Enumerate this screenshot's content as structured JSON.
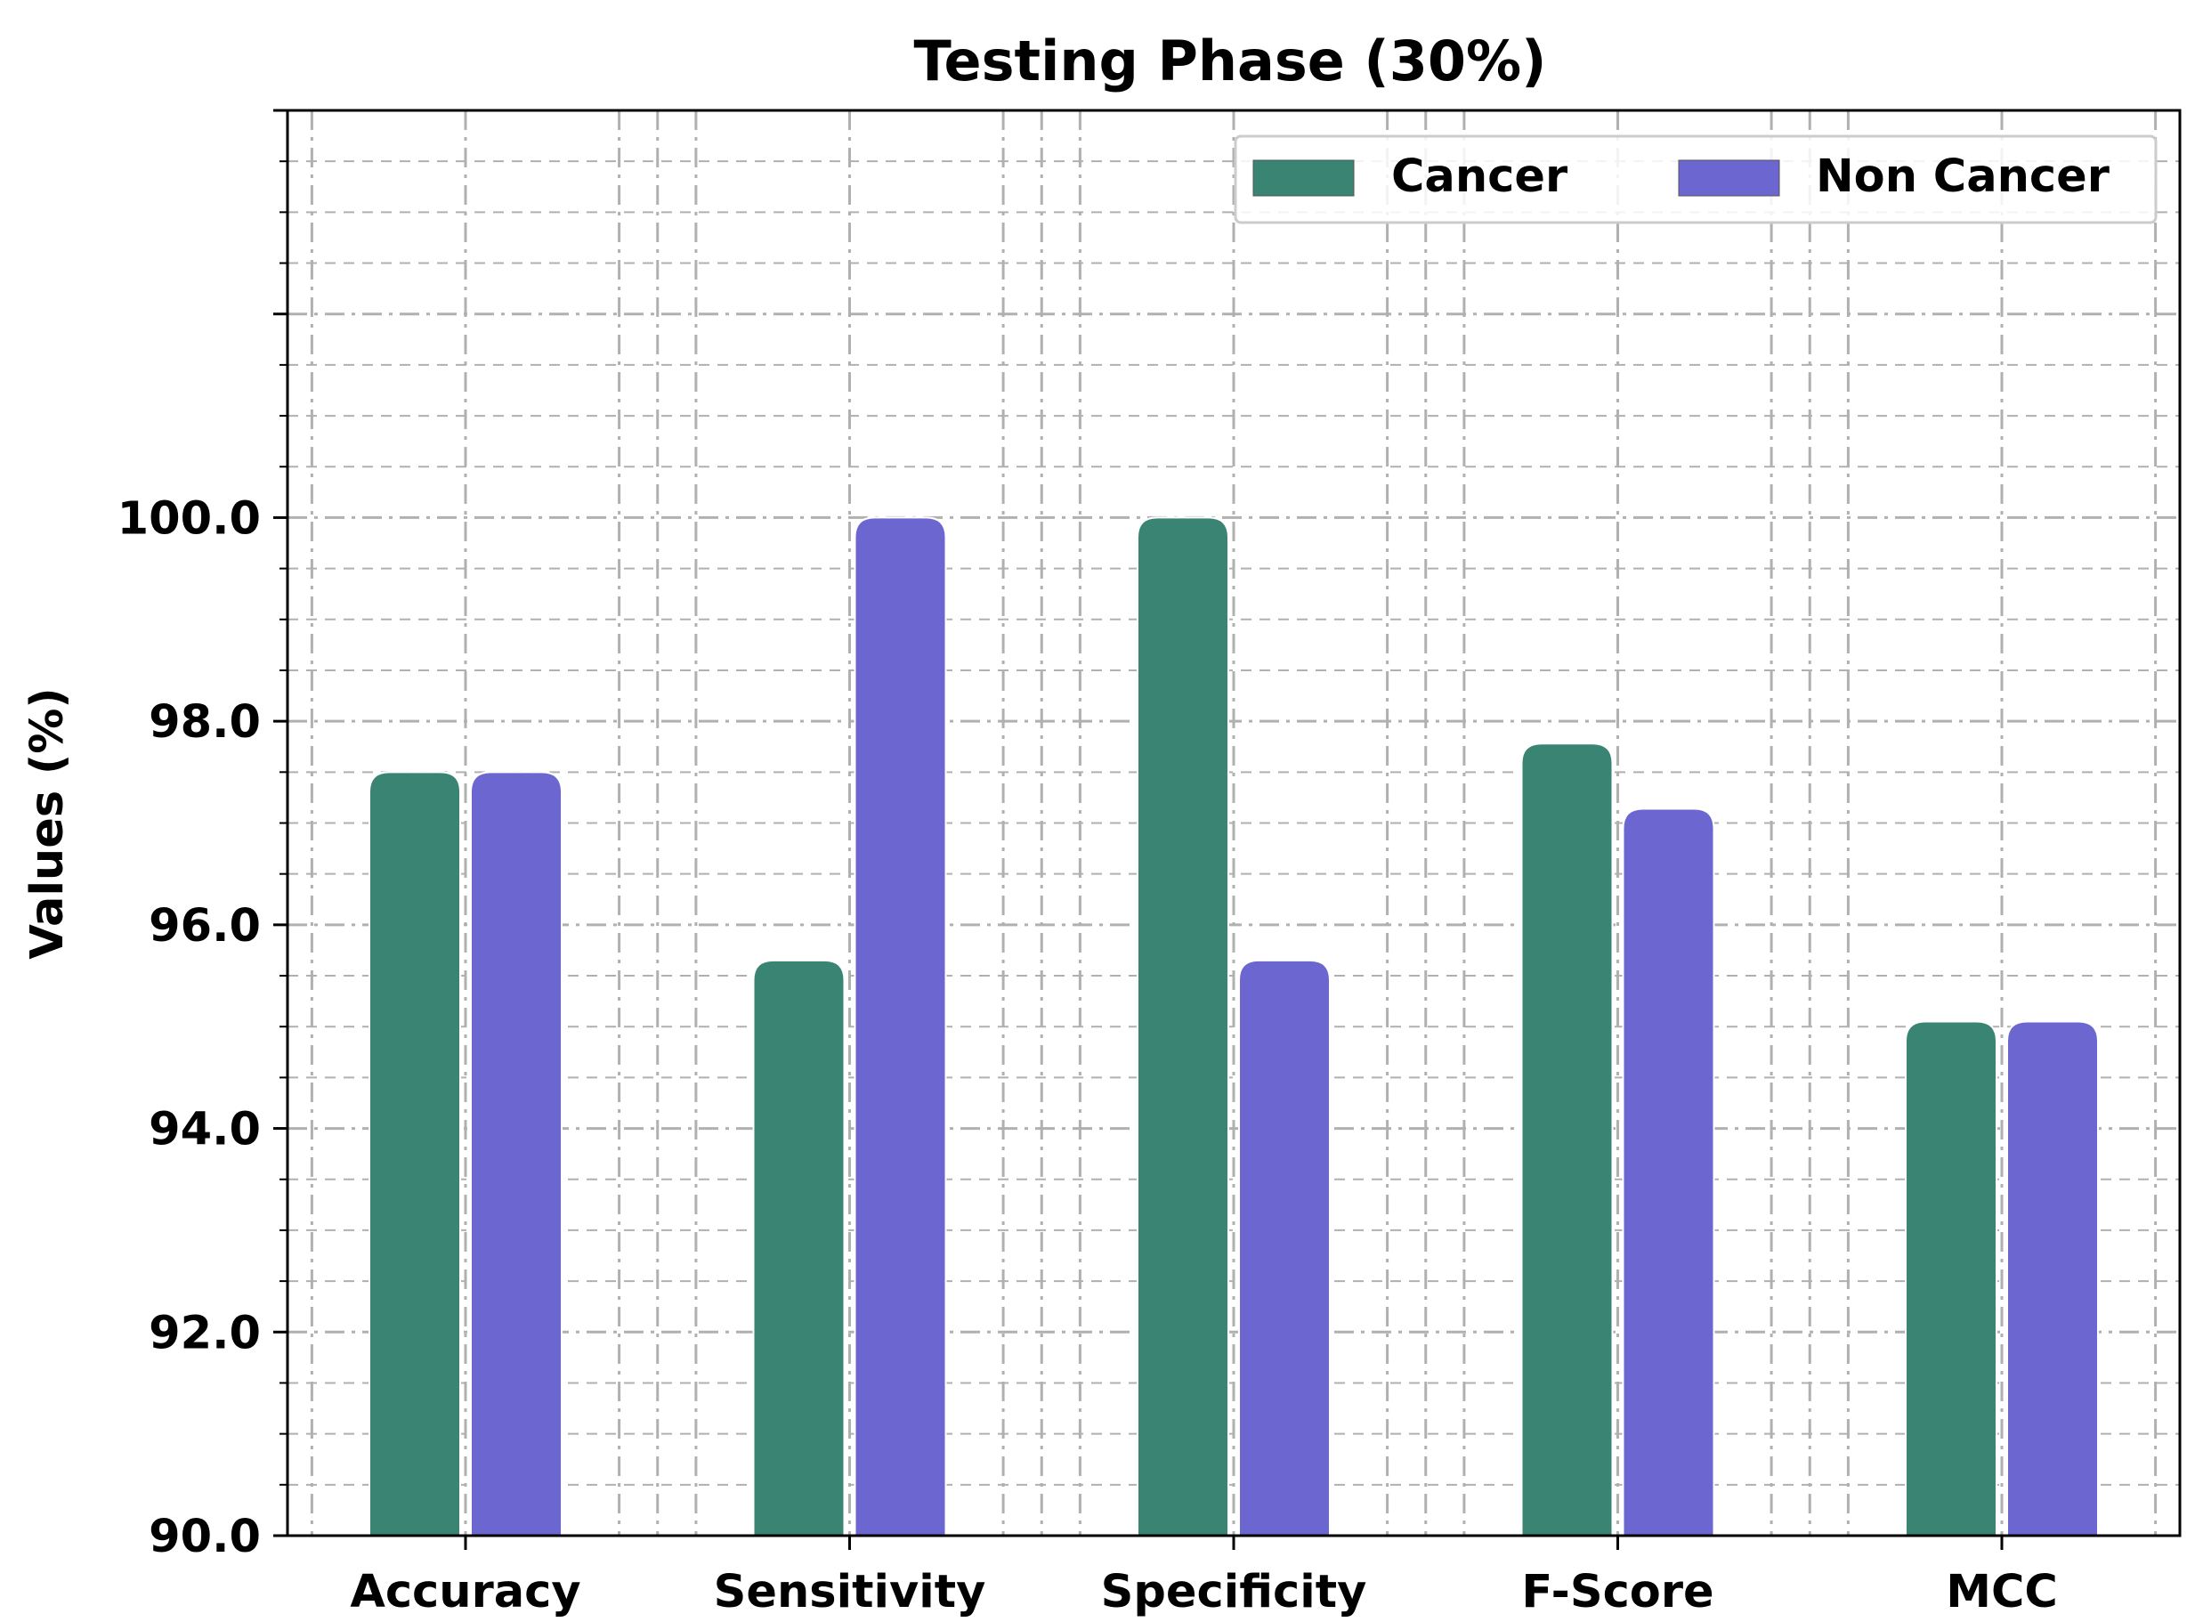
{
  "chart_data": {
    "type": "bar",
    "title": "Testing Phase (30%)",
    "xlabel": "",
    "ylabel": "Values (%)",
    "categories": [
      "Accuracy",
      "Sensitivity",
      "Specificity",
      "F-Score",
      "MCC"
    ],
    "series": [
      {
        "name": "Cancer",
        "color": "#3a8474",
        "values": [
          97.5,
          95.65,
          100.0,
          97.78,
          95.05
        ]
      },
      {
        "name": "Non Cancer",
        "color": "#6c66d0",
        "values": [
          97.5,
          100.0,
          95.65,
          97.14,
          95.05
        ]
      }
    ],
    "ylim": [
      90,
      104
    ],
    "yticks": [
      "90.0",
      "92.0",
      "94.0",
      "96.0",
      "98.0",
      "100.0"
    ],
    "ytick_values": [
      90,
      92,
      94,
      96,
      98,
      100
    ],
    "grid": true,
    "legend_position": "top-right"
  }
}
